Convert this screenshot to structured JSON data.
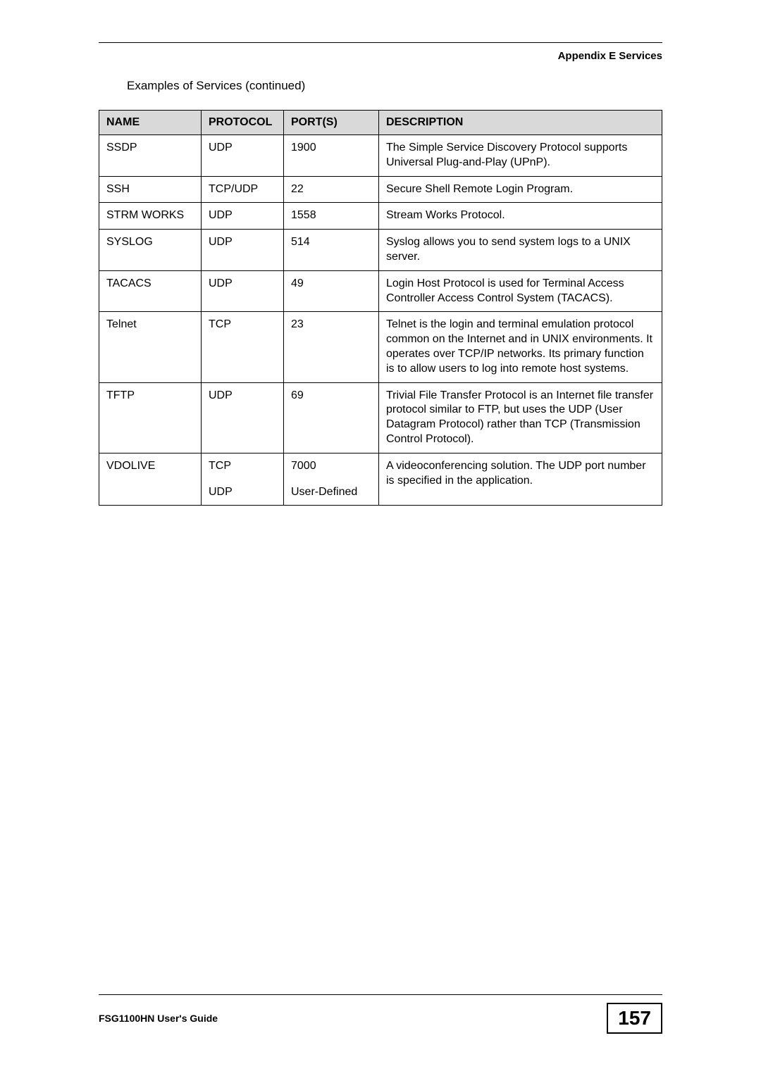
{
  "header": {
    "appendix": "Appendix E Services"
  },
  "caption": "Examples of Services (continued)",
  "table": {
    "columns": [
      "NAME",
      "PROTOCOL",
      "PORT(S)",
      "DESCRIPTION"
    ],
    "rows": [
      {
        "name": "SSDP",
        "protocol": "UDP",
        "ports": "1900",
        "description": "The Simple Service Discovery Protocol supports Universal Plug-and-Play (UPnP)."
      },
      {
        "name": "SSH",
        "protocol": "TCP/UDP",
        "ports": "22",
        "description": "Secure Shell Remote Login Program."
      },
      {
        "name": "STRM WORKS",
        "protocol": "UDP",
        "ports": "1558",
        "description": "Stream Works Protocol."
      },
      {
        "name": "SYSLOG",
        "protocol": "UDP",
        "ports": "514",
        "description": "Syslog allows you to send system logs to a UNIX server."
      },
      {
        "name": "TACACS",
        "protocol": "UDP",
        "ports": "49",
        "description": "Login Host Protocol is used for Terminal Access Controller Access Control System (TACACS)."
      },
      {
        "name": "Telnet",
        "protocol": "TCP",
        "ports": "23",
        "description": "Telnet is the login and terminal emulation protocol common on the Internet and in UNIX environments. It operates over TCP/IP networks. Its primary function is to allow users to log into remote host systems."
      },
      {
        "name": "TFTP",
        "protocol": "UDP",
        "ports": "69",
        "description": "Trivial File Transfer Protocol is an Internet file transfer protocol similar to FTP, but uses the UDP (User Datagram Protocol) rather than TCP (Transmission Control Protocol)."
      }
    ],
    "vdolive": {
      "name": "VDOLIVE",
      "protocol1": "TCP",
      "protocol2": "UDP",
      "ports1": "7000",
      "ports2": "User-Defined",
      "description": "A videoconferencing solution. The UDP port number is specified in the application."
    }
  },
  "footer": {
    "guide": "FSG1100HN User's Guide",
    "page": "157"
  }
}
